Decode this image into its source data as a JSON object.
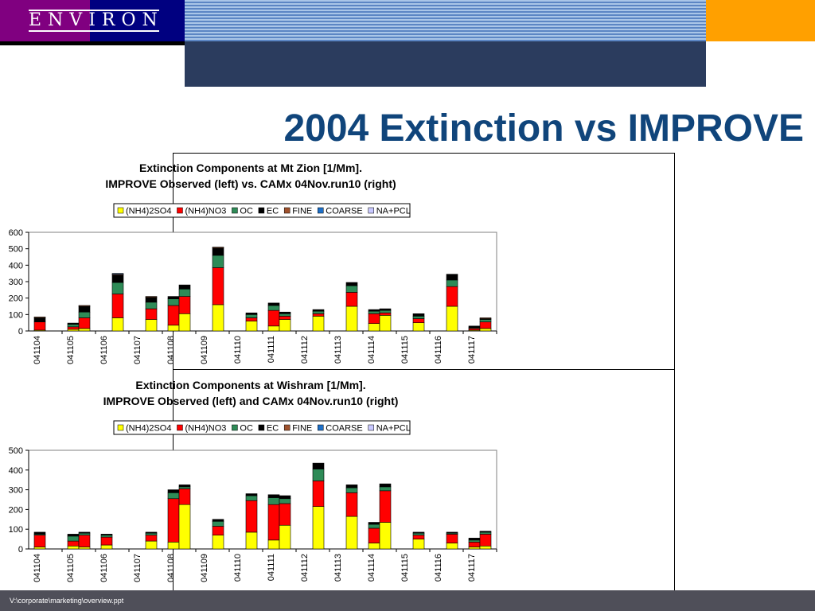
{
  "slide": {
    "title": "2004 Extinction vs IMPROVE",
    "logo": "ENVIRON",
    "footer": "V:\\corporate\\marketing\\overview.ppt"
  },
  "colors": {
    "purple": "#800080",
    "navy": "#000080",
    "stripe_light": "#aac6e8",
    "stripe_dark": "#5c86c4",
    "orange": "#ffa000",
    "slate": "#2b3c5e",
    "title": "#10457b",
    "footer_bg": "#4f4f59"
  },
  "legend_items": [
    {
      "name": "(NH4)2SO4",
      "color": "#ffff00"
    },
    {
      "name": "(NH4)NO3",
      "color": "#ff0000"
    },
    {
      "name": "OC",
      "color": "#2e8b57"
    },
    {
      "name": "EC",
      "color": "#000000"
    },
    {
      "name": "FINE",
      "color": "#a0522d"
    },
    {
      "name": "COARSE",
      "color": "#1e70c8"
    },
    {
      "name": "NA+PCL",
      "color": "#c8c8ff"
    }
  ],
  "chart_data": [
    {
      "type": "bar",
      "stacked": true,
      "title": "Extinction Components at Mt Zion [1/Mm].",
      "subtitle": "IMPROVE Observed (left) vs. CAMx 04Nov.run10 (right)",
      "categories": [
        "041104",
        "041105",
        "041106",
        "041107",
        "041108",
        "041109",
        "041110",
        "041111",
        "041112",
        "041113",
        "041114",
        "041115",
        "041116",
        "041117"
      ],
      "ylim": [
        0,
        600
      ],
      "yticks": [
        0,
        100,
        200,
        300,
        400,
        500,
        600
      ],
      "legend_position": "top",
      "bars": [
        {
          "category": "041104",
          "side": "left",
          "values": [
            5,
            50,
            0,
            25,
            5,
            0,
            0
          ]
        },
        {
          "category": "041105",
          "side": "left",
          "values": [
            10,
            15,
            15,
            8,
            0,
            0,
            0
          ]
        },
        {
          "category": "041105",
          "side": "right",
          "values": [
            15,
            65,
            35,
            35,
            5,
            0,
            0
          ]
        },
        {
          "category": "041106",
          "side": "right",
          "values": [
            80,
            145,
            70,
            45,
            5,
            5,
            0
          ]
        },
        {
          "category": "041107",
          "side": "right",
          "values": [
            70,
            65,
            40,
            30,
            5,
            0,
            0
          ]
        },
        {
          "category": "041108",
          "side": "left",
          "values": [
            35,
            120,
            40,
            15,
            0,
            0,
            0
          ]
        },
        {
          "category": "041108",
          "side": "right",
          "values": [
            105,
            105,
            45,
            25,
            0,
            0,
            0
          ]
        },
        {
          "category": "041109",
          "side": "right",
          "values": [
            160,
            225,
            75,
            45,
            5,
            0,
            0
          ]
        },
        {
          "category": "041110",
          "side": "right",
          "values": [
            60,
            20,
            20,
            10,
            0,
            0,
            0
          ]
        },
        {
          "category": "041111",
          "side": "left",
          "values": [
            30,
            95,
            30,
            15,
            0,
            0,
            0
          ]
        },
        {
          "category": "041111",
          "side": "right",
          "values": [
            70,
            20,
            15,
            10,
            0,
            0,
            0
          ]
        },
        {
          "category": "041112",
          "side": "right",
          "values": [
            90,
            15,
            15,
            10,
            0,
            0,
            0
          ]
        },
        {
          "category": "041113",
          "side": "right",
          "values": [
            150,
            85,
            40,
            20,
            0,
            0,
            0
          ]
        },
        {
          "category": "041114",
          "side": "left",
          "values": [
            45,
            60,
            15,
            10,
            0,
            0,
            0
          ]
        },
        {
          "category": "041114",
          "side": "right",
          "values": [
            95,
            15,
            15,
            10,
            0,
            0,
            0
          ]
        },
        {
          "category": "041115",
          "side": "right",
          "values": [
            50,
            25,
            15,
            15,
            0,
            0,
            0
          ]
        },
        {
          "category": "041116",
          "side": "right",
          "values": [
            150,
            120,
            40,
            35,
            0,
            0,
            0
          ]
        },
        {
          "category": "041117",
          "side": "left",
          "values": [
            5,
            10,
            5,
            10,
            0,
            0,
            0
          ]
        },
        {
          "category": "041117",
          "side": "right",
          "values": [
            15,
            40,
            15,
            5,
            5,
            0,
            0
          ]
        }
      ]
    },
    {
      "type": "bar",
      "stacked": true,
      "title": "Extinction Components at Wishram [1/Mm].",
      "subtitle": "IMPROVE Observed (left) and CAMx 04Nov.run10 (right)",
      "categories": [
        "041104",
        "041105",
        "041106",
        "041107",
        "041108",
        "041109",
        "041110",
        "041111",
        "041112",
        "041113",
        "041114",
        "041115",
        "041116",
        "041117"
      ],
      "ylim": [
        0,
        500
      ],
      "yticks": [
        0,
        100,
        200,
        300,
        400,
        500
      ],
      "legend_position": "top",
      "bars": [
        {
          "category": "041104",
          "side": "left",
          "values": [
            10,
            60,
            5,
            10,
            0,
            0,
            0
          ]
        },
        {
          "category": "041105",
          "side": "left",
          "values": [
            15,
            25,
            25,
            10,
            0,
            0,
            0
          ]
        },
        {
          "category": "041105",
          "side": "right",
          "values": [
            10,
            60,
            10,
            5,
            0,
            0,
            0
          ]
        },
        {
          "category": "041106",
          "side": "left",
          "values": [
            20,
            40,
            10,
            5,
            0,
            0,
            0
          ]
        },
        {
          "category": "041107",
          "side": "right",
          "values": [
            40,
            30,
            10,
            5,
            0,
            0,
            0
          ]
        },
        {
          "category": "041108",
          "side": "left",
          "values": [
            35,
            220,
            30,
            15,
            0,
            0,
            0
          ]
        },
        {
          "category": "041108",
          "side": "right",
          "values": [
            225,
            80,
            10,
            10,
            0,
            0,
            0
          ]
        },
        {
          "category": "041109",
          "side": "right",
          "values": [
            70,
            45,
            25,
            10,
            0,
            0,
            0
          ]
        },
        {
          "category": "041110",
          "side": "right",
          "values": [
            85,
            160,
            25,
            10,
            0,
            0,
            0
          ]
        },
        {
          "category": "041111",
          "side": "left",
          "values": [
            45,
            180,
            35,
            15,
            0,
            0,
            0
          ]
        },
        {
          "category": "041111",
          "side": "right",
          "values": [
            120,
            110,
            25,
            15,
            0,
            0,
            0
          ]
        },
        {
          "category": "041112",
          "side": "right",
          "values": [
            215,
            130,
            60,
            30,
            0,
            0,
            0
          ]
        },
        {
          "category": "041113",
          "side": "right",
          "values": [
            165,
            120,
            25,
            15,
            0,
            0,
            0
          ]
        },
        {
          "category": "041114",
          "side": "left",
          "values": [
            30,
            75,
            20,
            10,
            0,
            0,
            0
          ]
        },
        {
          "category": "041114",
          "side": "right",
          "values": [
            135,
            160,
            20,
            15,
            0,
            0,
            0
          ]
        },
        {
          "category": "041115",
          "side": "right",
          "values": [
            50,
            20,
            10,
            5,
            0,
            0,
            0
          ]
        },
        {
          "category": "041116",
          "side": "right",
          "values": [
            30,
            45,
            5,
            5,
            0,
            0,
            0
          ]
        },
        {
          "category": "041117",
          "side": "left",
          "values": [
            10,
            25,
            10,
            10,
            0,
            0,
            0
          ]
        },
        {
          "category": "041117",
          "side": "right",
          "values": [
            15,
            60,
            10,
            5,
            0,
            0,
            0
          ]
        }
      ]
    }
  ]
}
